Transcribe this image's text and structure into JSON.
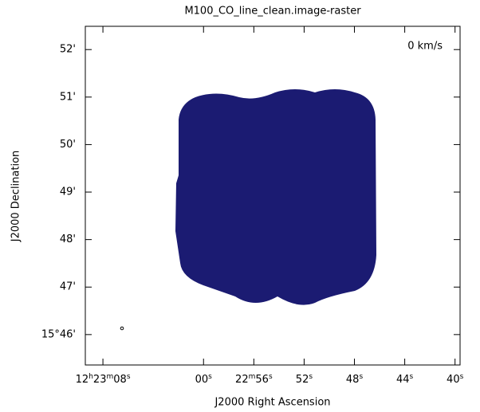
{
  "chart_data": {
    "type": "image",
    "title": "M100_CO_line_clean.image-raster",
    "annotation": "0 km/s",
    "xlabel": "J2000 Right Ascension",
    "ylabel": "J2000 Declination",
    "color": "#1b1b72",
    "xlim": [
      9.4,
      -20.4
    ],
    "ylim": [
      45.36,
      52.49
    ],
    "xticks": [
      {
        "value": 8,
        "label": "12h23m08s"
      },
      {
        "value": 0,
        "label": "00s"
      },
      {
        "value": -4,
        "label": "22m56s"
      },
      {
        "value": -8,
        "label": "52s"
      },
      {
        "value": -12,
        "label": "48s"
      },
      {
        "value": -16,
        "label": "44s"
      },
      {
        "value": -20,
        "label": "40s"
      }
    ],
    "yticks": [
      {
        "value": 52,
        "label": "52'"
      },
      {
        "value": 51,
        "label": "51'"
      },
      {
        "value": 50,
        "label": "50'"
      },
      {
        "value": 49,
        "label": "49'"
      },
      {
        "value": 48,
        "label": "48'"
      },
      {
        "value": 47,
        "label": "47'"
      },
      {
        "value": 46,
        "label": "15°46'"
      }
    ]
  }
}
